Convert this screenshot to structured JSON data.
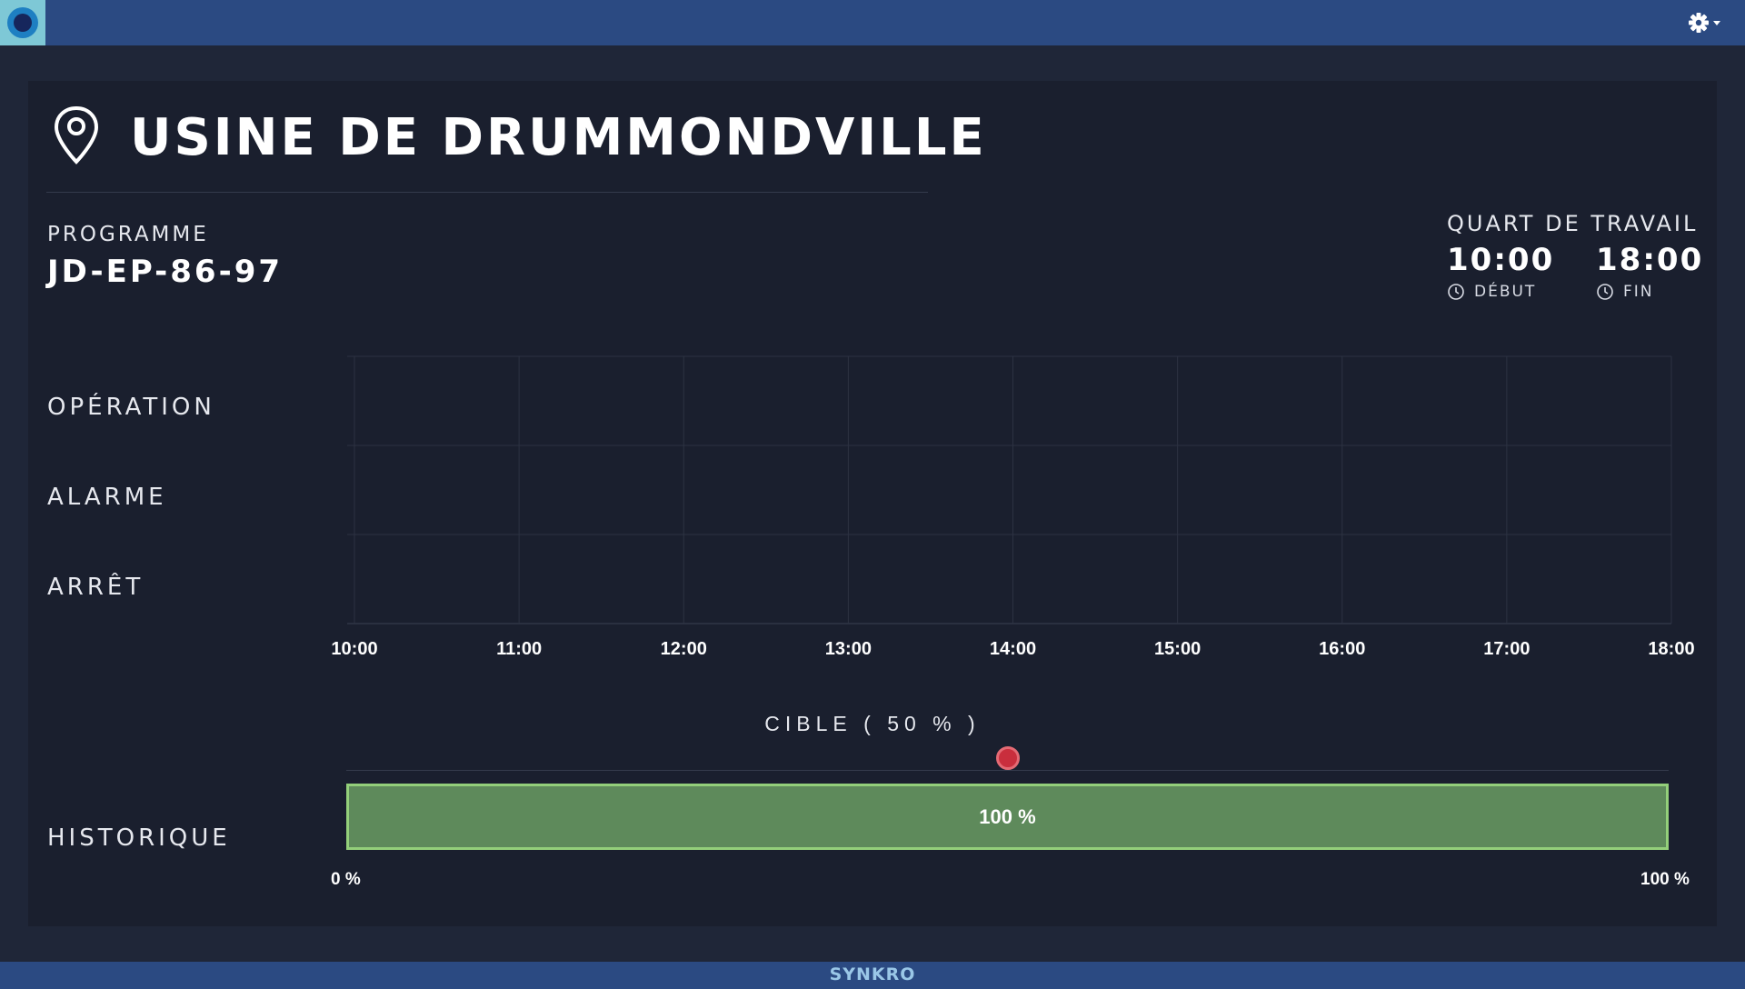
{
  "header": {
    "settings_icon": "gear-icon"
  },
  "plant": {
    "title": "USINE DE DRUMMONDVILLE",
    "icon": "location-pin-icon"
  },
  "program": {
    "label": "PROGRAMME",
    "value": "JD-EP-86-97"
  },
  "shift": {
    "label": "QUART DE TRAVAIL",
    "start_time": "10:00",
    "start_label": "DÉBUT",
    "end_time": "18:00",
    "end_label": "FIN"
  },
  "timeline": {
    "rows": [
      "OPÉRATION",
      "ALARME",
      "ARRÊT"
    ],
    "hours": [
      "10:00",
      "11:00",
      "12:00",
      "13:00",
      "14:00",
      "15:00",
      "16:00",
      "17:00",
      "18:00"
    ]
  },
  "history": {
    "label": "HISTORIQUE",
    "target_label": "CIBLE ( 50 % )",
    "target_fraction": 0.5,
    "value_label": "100 %",
    "value_fraction": 1.0,
    "min_label": "0 %",
    "max_label": "100 %"
  },
  "footer": {
    "brand": "SYNKRO"
  },
  "colors": {
    "topbar": "#2b4a82",
    "panel": "#1a1f2e",
    "bar_fill": "#5e8a5b",
    "bar_border": "#93cf7a",
    "target_marker": "#c92e3d"
  }
}
